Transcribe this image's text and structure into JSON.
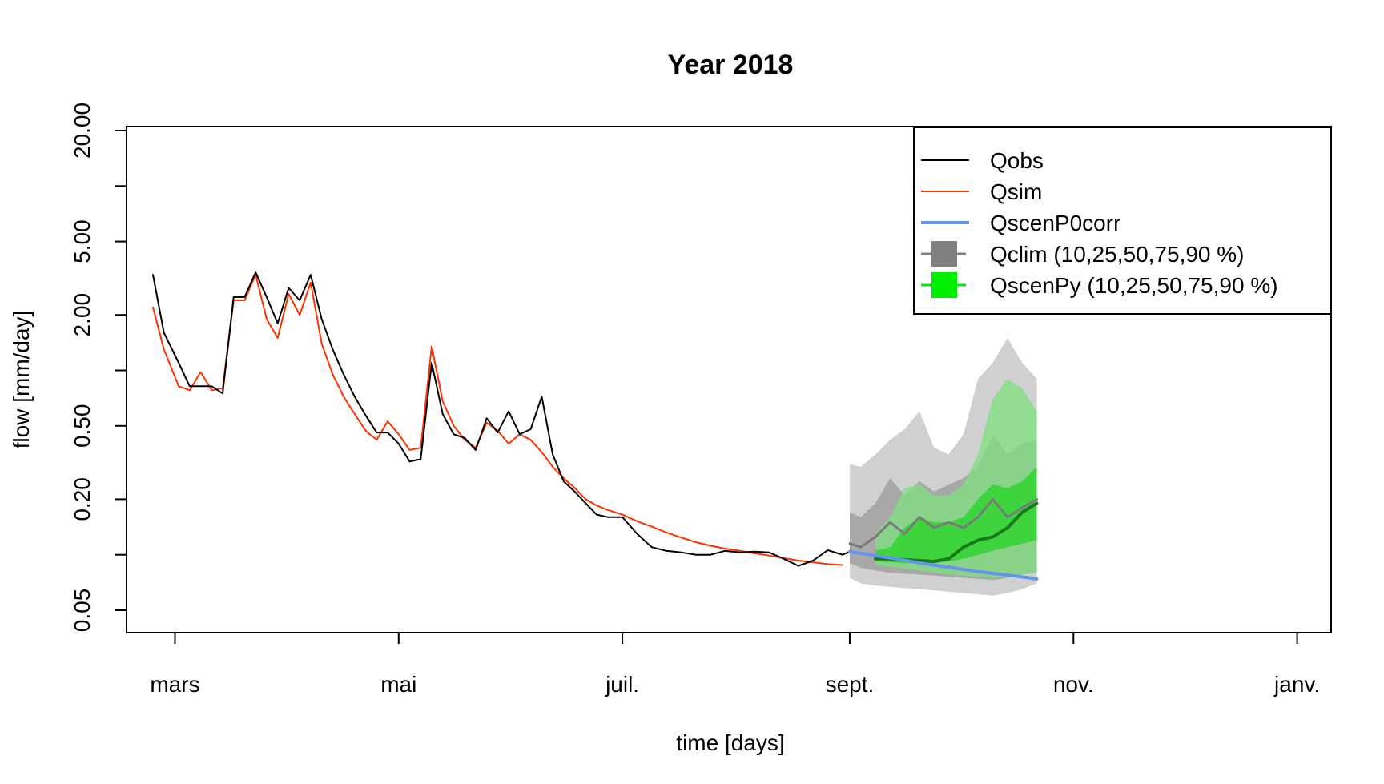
{
  "chart_data": {
    "type": "line",
    "title": "Year 2018",
    "xlabel": "time [days]",
    "ylabel": "flow [mm/day]",
    "y_scale": "log",
    "xlim": [
      "2018-02-23",
      "2018-12-31"
    ],
    "ylim": [
      0.05,
      20
    ],
    "x_ticks": [
      {
        "date": "2018-03-01",
        "label": "mars"
      },
      {
        "date": "2018-05-01",
        "label": "mai"
      },
      {
        "date": "2018-07-01",
        "label": "juil."
      },
      {
        "date": "2018-09-01",
        "label": "sept."
      },
      {
        "date": "2018-11-01",
        "label": "nov."
      },
      {
        "date": "2019-01-01",
        "label": "janv."
      }
    ],
    "y_ticks": [
      {
        "value": 0.05,
        "label": "0.05"
      },
      {
        "value": 0.1,
        "label": ""
      },
      {
        "value": 0.2,
        "label": "0.20"
      },
      {
        "value": 0.5,
        "label": "0.50"
      },
      {
        "value": 1,
        "label": ""
      },
      {
        "value": 2,
        "label": "2.00"
      },
      {
        "value": 5,
        "label": "5.00"
      },
      {
        "value": 10,
        "label": ""
      },
      {
        "value": 20,
        "label": "20.00"
      }
    ],
    "legend": {
      "position": "top-right",
      "entries": [
        {
          "label": "Qobs",
          "color": "#000000",
          "style": "line"
        },
        {
          "label": "Qsim",
          "color": "#ff3300",
          "style": "line"
        },
        {
          "label": "QscenP0corr",
          "color": "#6495ed",
          "style": "thick-line"
        },
        {
          "label": "Qclim (10,25,50,75,90 %)",
          "color": "#808080",
          "style": "box"
        },
        {
          "label": "QscenPy (10,25,50,75,90 %)",
          "color": "#00ee00",
          "style": "box"
        }
      ]
    },
    "series": [
      {
        "name": "Qobs",
        "color": "#000000",
        "x": [
          "2018-02-23",
          "2018-02-26",
          "2018-03-02",
          "2018-03-05",
          "2018-03-08",
          "2018-03-11",
          "2018-03-14",
          "2018-03-17",
          "2018-03-20",
          "2018-03-23",
          "2018-03-26",
          "2018-03-29",
          "2018-04-01",
          "2018-04-04",
          "2018-04-07",
          "2018-04-10",
          "2018-04-13",
          "2018-04-16",
          "2018-04-19",
          "2018-04-22",
          "2018-04-25",
          "2018-04-28",
          "2018-05-01",
          "2018-05-04",
          "2018-05-07",
          "2018-05-10",
          "2018-05-13",
          "2018-05-16",
          "2018-05-19",
          "2018-05-22",
          "2018-05-25",
          "2018-05-28",
          "2018-05-31",
          "2018-06-03",
          "2018-06-06",
          "2018-06-09",
          "2018-06-12",
          "2018-06-15",
          "2018-06-18",
          "2018-06-21",
          "2018-06-24",
          "2018-06-27",
          "2018-07-01",
          "2018-07-05",
          "2018-07-09",
          "2018-07-13",
          "2018-07-17",
          "2018-07-21",
          "2018-07-25",
          "2018-07-29",
          "2018-08-02",
          "2018-08-06",
          "2018-08-10",
          "2018-08-14",
          "2018-08-18",
          "2018-08-22",
          "2018-08-26",
          "2018-08-30",
          "2018-09-01"
        ],
        "values": [
          3.3,
          1.6,
          1.1,
          0.82,
          0.82,
          0.82,
          0.75,
          2.5,
          2.5,
          3.4,
          2.5,
          1.8,
          2.8,
          2.4,
          3.3,
          1.9,
          1.3,
          0.95,
          0.72,
          0.57,
          0.46,
          0.46,
          0.4,
          0.32,
          0.33,
          1.1,
          0.58,
          0.45,
          0.43,
          0.37,
          0.55,
          0.46,
          0.6,
          0.45,
          0.48,
          0.72,
          0.35,
          0.25,
          0.22,
          0.19,
          0.165,
          0.16,
          0.16,
          0.13,
          0.11,
          0.105,
          0.103,
          0.1,
          0.1,
          0.105,
          0.103,
          0.104,
          0.103,
          0.095,
          0.087,
          0.093,
          0.106,
          0.1,
          0.104
        ]
      },
      {
        "name": "Qsim",
        "color": "#ff3300",
        "x": [
          "2018-02-23",
          "2018-02-26",
          "2018-03-02",
          "2018-03-05",
          "2018-03-08",
          "2018-03-11",
          "2018-03-14",
          "2018-03-17",
          "2018-03-20",
          "2018-03-23",
          "2018-03-26",
          "2018-03-29",
          "2018-04-01",
          "2018-04-04",
          "2018-04-07",
          "2018-04-10",
          "2018-04-13",
          "2018-04-16",
          "2018-04-19",
          "2018-04-22",
          "2018-04-25",
          "2018-04-28",
          "2018-05-01",
          "2018-05-04",
          "2018-05-07",
          "2018-05-10",
          "2018-05-13",
          "2018-05-16",
          "2018-05-19",
          "2018-05-22",
          "2018-05-25",
          "2018-05-28",
          "2018-05-31",
          "2018-06-03",
          "2018-06-06",
          "2018-06-09",
          "2018-06-12",
          "2018-06-15",
          "2018-06-18",
          "2018-06-21",
          "2018-06-24",
          "2018-06-27",
          "2018-07-01",
          "2018-07-05",
          "2018-07-09",
          "2018-07-13",
          "2018-07-17",
          "2018-07-21",
          "2018-07-25",
          "2018-07-29",
          "2018-08-02",
          "2018-08-06",
          "2018-08-10",
          "2018-08-14",
          "2018-08-18",
          "2018-08-22",
          "2018-08-26",
          "2018-08-30"
        ],
        "values": [
          2.2,
          1.3,
          0.82,
          0.78,
          0.98,
          0.78,
          0.8,
          2.4,
          2.4,
          3.3,
          1.9,
          1.5,
          2.6,
          2.0,
          3.0,
          1.4,
          0.95,
          0.72,
          0.58,
          0.47,
          0.42,
          0.53,
          0.45,
          0.37,
          0.38,
          1.35,
          0.68,
          0.5,
          0.42,
          0.38,
          0.52,
          0.47,
          0.4,
          0.45,
          0.42,
          0.36,
          0.3,
          0.26,
          0.23,
          0.2,
          0.185,
          0.175,
          0.165,
          0.152,
          0.142,
          0.132,
          0.124,
          0.117,
          0.112,
          0.108,
          0.105,
          0.102,
          0.099,
          0.096,
          0.093,
          0.091,
          0.089,
          0.088
        ]
      },
      {
        "name": "QscenP0corr",
        "color": "#6495ed",
        "x": [
          "2018-09-01",
          "2018-09-08",
          "2018-09-15",
          "2018-09-22",
          "2018-09-29",
          "2018-10-06",
          "2018-10-13",
          "2018-10-20",
          "2018-10-22"
        ],
        "values": [
          0.104,
          0.099,
          0.094,
          0.089,
          0.085,
          0.081,
          0.078,
          0.075,
          0.074
        ]
      },
      {
        "name": "Qclim (10,25,50,75,90 %)",
        "color": "#808080",
        "x": [
          "2018-09-01",
          "2018-09-04",
          "2018-09-08",
          "2018-09-12",
          "2018-09-16",
          "2018-09-20",
          "2018-09-24",
          "2018-09-28",
          "2018-10-02",
          "2018-10-06",
          "2018-10-10",
          "2018-10-14",
          "2018-10-18",
          "2018-10-22"
        ],
        "q10": [
          0.075,
          0.07,
          0.068,
          0.067,
          0.066,
          0.065,
          0.064,
          0.063,
          0.062,
          0.061,
          0.06,
          0.062,
          0.065,
          0.07
        ],
        "q25": [
          0.09,
          0.085,
          0.082,
          0.08,
          0.079,
          0.078,
          0.077,
          0.076,
          0.075,
          0.074,
          0.073,
          0.075,
          0.078,
          0.08
        ],
        "q50": [
          0.115,
          0.11,
          0.125,
          0.15,
          0.13,
          0.16,
          0.14,
          0.15,
          0.14,
          0.16,
          0.2,
          0.16,
          0.18,
          0.2
        ],
        "q75": [
          0.17,
          0.16,
          0.19,
          0.26,
          0.21,
          0.25,
          0.22,
          0.24,
          0.26,
          0.3,
          0.45,
          0.35,
          0.4,
          0.42
        ],
        "q90": [
          0.31,
          0.3,
          0.35,
          0.42,
          0.48,
          0.6,
          0.38,
          0.35,
          0.45,
          0.9,
          1.1,
          1.5,
          1.1,
          0.9
        ]
      },
      {
        "name": "QscenPy (10,25,50,75,90 %)",
        "color": "#00ee00",
        "x": [
          "2018-09-08",
          "2018-09-12",
          "2018-09-16",
          "2018-09-20",
          "2018-09-24",
          "2018-09-28",
          "2018-10-02",
          "2018-10-06",
          "2018-10-10",
          "2018-10-14",
          "2018-10-18",
          "2018-10-22"
        ],
        "q10": [
          0.088,
          0.086,
          0.084,
          0.082,
          0.08,
          0.078,
          0.077,
          0.076,
          0.075,
          0.076,
          0.078,
          0.08
        ],
        "q25": [
          0.092,
          0.091,
          0.09,
          0.09,
          0.09,
          0.092,
          0.095,
          0.1,
          0.105,
          0.11,
          0.115,
          0.12
        ],
        "q50": [
          0.095,
          0.095,
          0.094,
          0.093,
          0.092,
          0.095,
          0.11,
          0.12,
          0.125,
          0.14,
          0.17,
          0.19
        ],
        "q75": [
          0.105,
          0.11,
          0.14,
          0.16,
          0.15,
          0.15,
          0.16,
          0.2,
          0.24,
          0.23,
          0.25,
          0.3
        ],
        "q90": [
          0.13,
          0.16,
          0.23,
          0.24,
          0.21,
          0.21,
          0.24,
          0.35,
          0.7,
          0.9,
          0.8,
          0.6
        ]
      }
    ]
  }
}
